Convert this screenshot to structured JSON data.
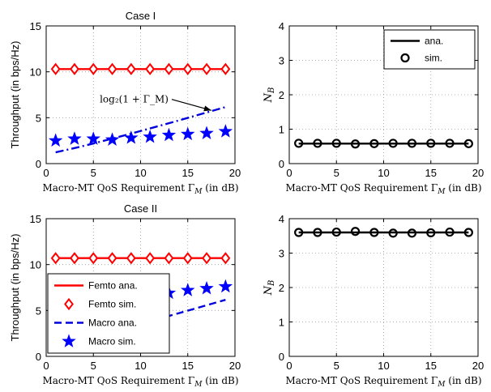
{
  "chart_data": [
    {
      "type": "line",
      "title": "Case I",
      "xlabel": "Macro-MT QoS Requirement Γ_M (in dB)",
      "ylabel": "Throughput (in bps/Hz)",
      "xlim": [
        0,
        20
      ],
      "ylim": [
        0,
        15
      ],
      "xticks": [
        "0",
        "5",
        "10",
        "15",
        "20"
      ],
      "yticks": [
        "0",
        "5",
        "10",
        "15"
      ],
      "grid": true,
      "x": [
        1,
        3,
        5,
        7,
        9,
        11,
        13,
        15,
        17,
        19
      ],
      "series": [
        {
          "key": "femto_ana",
          "style": "solid",
          "marker": "none",
          "color": "#ff0000",
          "values": [
            10.3,
            10.3,
            10.3,
            10.3,
            10.3,
            10.3,
            10.3,
            10.3,
            10.3,
            10.3
          ]
        },
        {
          "key": "femto_sim",
          "style": "none",
          "marker": "diamond",
          "color": "#ff0000",
          "values": [
            10.3,
            10.3,
            10.3,
            10.3,
            10.3,
            10.3,
            10.3,
            10.3,
            10.3,
            10.3
          ]
        },
        {
          "key": "log_curve",
          "style": "dashdot",
          "marker": "none",
          "color": "#0000dd",
          "values": [
            1.23,
            1.69,
            2.19,
            2.72,
            3.27,
            3.83,
            4.4,
            4.98,
            5.57,
            6.16
          ]
        },
        {
          "key": "macro_sim",
          "style": "none",
          "marker": "star",
          "color": "#0000ff",
          "values": [
            2.5,
            2.7,
            2.7,
            2.6,
            2.8,
            2.9,
            3.1,
            3.2,
            3.3,
            3.5
          ]
        }
      ],
      "annotation": {
        "text": "log₂(1 + Γ_M)",
        "x_from": 13.3,
        "y_from": 7.0,
        "x_to": 17.5,
        "y_to": 5.8
      }
    },
    {
      "type": "line",
      "xlabel": "Macro-MT QoS Requirement Γ_M (in dB)",
      "ylabel": "N_B",
      "xlim": [
        0,
        20
      ],
      "ylim": [
        0,
        4
      ],
      "xticks": [
        "0",
        "5",
        "10",
        "15",
        "20"
      ],
      "yticks": [
        "0",
        "1",
        "2",
        "3",
        "4"
      ],
      "grid": true,
      "x": [
        1,
        3,
        5,
        7,
        9,
        11,
        13,
        15,
        17,
        19
      ],
      "series": [
        {
          "key": "ana",
          "name": "ana.",
          "style": "solid",
          "marker": "none",
          "color": "#000000",
          "values": [
            0.58,
            0.58,
            0.58,
            0.58,
            0.58,
            0.58,
            0.58,
            0.58,
            0.58,
            0.58
          ]
        },
        {
          "key": "sim",
          "name": "sim.",
          "style": "none",
          "marker": "circle",
          "color": "#000000",
          "values": [
            0.59,
            0.59,
            0.59,
            0.57,
            0.58,
            0.59,
            0.59,
            0.59,
            0.59,
            0.58
          ]
        }
      ],
      "legend": {
        "placement": "top-right",
        "entries": [
          "ana.",
          "sim."
        ]
      }
    },
    {
      "type": "line",
      "title": "Case II",
      "xlabel": "Macro-MT QoS Requirement Γ_M (in dB)",
      "ylabel": "Throughput (in bps/Hz)",
      "xlim": [
        0,
        20
      ],
      "ylim": [
        0,
        15
      ],
      "xticks": [
        "0",
        "5",
        "10",
        "15",
        "20"
      ],
      "yticks": [
        "0",
        "5",
        "10",
        "15"
      ],
      "grid": true,
      "x": [
        1,
        3,
        5,
        7,
        9,
        11,
        13,
        15,
        17,
        19
      ],
      "series": [
        {
          "key": "femto_ana",
          "name": "Femto ana.",
          "style": "solid",
          "marker": "none",
          "color": "#ff0000",
          "values": [
            10.7,
            10.7,
            10.7,
            10.7,
            10.7,
            10.7,
            10.7,
            10.7,
            10.7,
            10.7
          ]
        },
        {
          "key": "femto_sim",
          "name": "Femto sim.",
          "style": "none",
          "marker": "diamond",
          "color": "#ff0000",
          "values": [
            10.7,
            10.7,
            10.7,
            10.7,
            10.7,
            10.7,
            10.7,
            10.7,
            10.7,
            10.7
          ]
        },
        {
          "key": "macro_ana",
          "name": "Macro ana.",
          "style": "dashed",
          "marker": "none",
          "color": "#0000dd",
          "values": [
            1.23,
            1.69,
            2.19,
            2.72,
            3.27,
            3.83,
            4.4,
            4.98,
            5.57,
            6.16
          ]
        },
        {
          "key": "macro_sim",
          "name": "Macro sim.",
          "style": "none",
          "marker": "star",
          "color": "#0000ff",
          "values": [
            4.6,
            5.1,
            5.5,
            5.9,
            6.3,
            6.6,
            6.9,
            7.2,
            7.4,
            7.6
          ]
        }
      ],
      "legend": {
        "placement": "bottom-left",
        "entries": [
          "Femto ana.",
          "Femto sim.",
          "Macro ana.",
          "Macro sim."
        ]
      }
    },
    {
      "type": "line",
      "xlabel": "Macro-MT QoS Requirement Γ_M (in dB)",
      "ylabel": "N_B",
      "xlim": [
        0,
        20
      ],
      "ylim": [
        0,
        4
      ],
      "xticks": [
        "0",
        "5",
        "10",
        "15",
        "20"
      ],
      "yticks": [
        "0",
        "1",
        "2",
        "3",
        "4"
      ],
      "grid": true,
      "x": [
        1,
        3,
        5,
        7,
        9,
        11,
        13,
        15,
        17,
        19
      ],
      "series": [
        {
          "key": "ana",
          "style": "solid",
          "marker": "none",
          "color": "#000000",
          "values": [
            3.6,
            3.6,
            3.6,
            3.6,
            3.6,
            3.6,
            3.6,
            3.6,
            3.6,
            3.6
          ]
        },
        {
          "key": "sim",
          "style": "none",
          "marker": "circle",
          "color": "#000000",
          "values": [
            3.6,
            3.6,
            3.61,
            3.63,
            3.6,
            3.58,
            3.58,
            3.59,
            3.61,
            3.6
          ]
        }
      ]
    }
  ]
}
